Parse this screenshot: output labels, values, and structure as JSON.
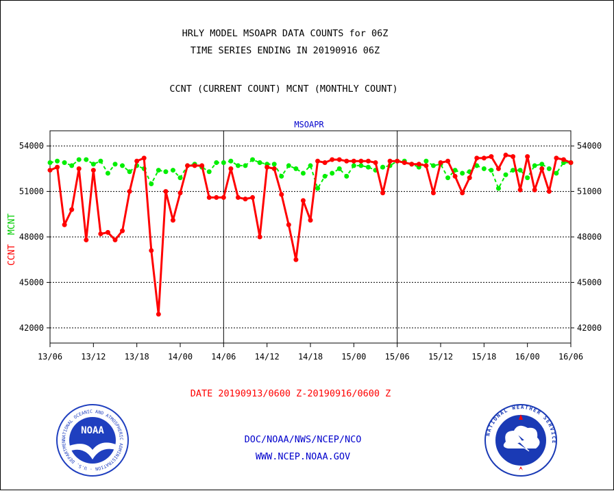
{
  "header": {
    "title_line1": "HRLY MODEL MSOAPR DATA COUNTS for 06Z",
    "title_line2": "TIME SERIES ENDING IN 20190916 06Z",
    "subtitle": "CCNT (CURRENT COUNT) MCNT (MONTHLY COUNT)"
  },
  "footer": {
    "date_range": "DATE 20190913/0600 Z-20190916/0600 Z",
    "org": "DOC/NOAA/NWS/NCEP/NCO",
    "url": "WWW.NCEP.NOAA.GOV"
  },
  "logos": {
    "noaa_text": "NOAA",
    "noaa_ring": "NATIONAL OCEANIC AND ATMOSPHERIC ADMINISTRATION · U.S. DEPARTMENT OF COMMERCE",
    "nws_ring": "NATIONAL WEATHER SERVICE"
  },
  "colors": {
    "ccnt": "#ff0000",
    "mcnt": "#00ee00",
    "label_blue": "#0000cc",
    "noaa_blue": "#1f3fbf",
    "nws_blue": "#1a3ab5"
  },
  "chart_data": {
    "type": "line",
    "title": "MSOAPR",
    "ylabel_left": "CCNT",
    "ylabel_right": "MCNT",
    "ylim": [
      41000,
      55000
    ],
    "yticks": [
      42000,
      45000,
      48000,
      51000,
      54000
    ],
    "ytick_labels": [
      "42000",
      "45000",
      "48000",
      "51000",
      "54000"
    ],
    "xlim": [
      0,
      72
    ],
    "xticks": [
      0,
      6,
      12,
      18,
      24,
      30,
      36,
      42,
      48,
      54,
      60,
      66,
      72
    ],
    "xtick_labels": [
      "13/06",
      "13/12",
      "13/18",
      "14/00",
      "14/06",
      "14/12",
      "14/18",
      "15/00",
      "15/06",
      "15/12",
      "15/18",
      "16/00",
      "16/06"
    ],
    "day_dividers": [
      24,
      48
    ],
    "grid": true,
    "series": [
      {
        "name": "CCNT",
        "x": [
          0,
          1,
          2,
          3,
          4,
          5,
          6,
          7,
          8,
          9,
          10,
          11,
          12,
          13,
          14,
          15,
          16,
          17,
          18,
          19,
          20,
          21,
          22,
          23,
          24,
          25,
          26,
          27,
          28,
          29,
          30,
          31,
          32,
          33,
          34,
          35,
          36,
          37,
          38,
          39,
          40,
          41,
          42,
          43,
          44,
          45,
          46,
          47,
          48,
          49,
          50,
          51,
          52,
          53,
          54,
          55,
          56,
          57,
          58,
          59,
          60,
          61,
          62,
          63,
          64,
          65,
          66,
          67,
          68,
          69,
          70,
          71,
          72
        ],
        "values": [
          52400,
          52600,
          48800,
          49800,
          52500,
          47800,
          52400,
          48200,
          48300,
          47800,
          48400,
          51000,
          53000,
          53200,
          47100,
          42900,
          51000,
          49100,
          50900,
          52700,
          52700,
          52700,
          50600,
          50600,
          50600,
          52500,
          50600,
          50500,
          50600,
          48000,
          52600,
          52500,
          50800,
          48800,
          46500,
          50400,
          49100,
          53000,
          52900,
          53100,
          53100,
          53000,
          53000,
          53000,
          53000,
          52900,
          50900,
          53000,
          53000,
          52900,
          52800,
          52800,
          52700,
          50900,
          52900,
          53000,
          52000,
          50900,
          51900,
          53200,
          53200,
          53300,
          52500,
          53400,
          53300,
          51100,
          53300,
          51100,
          52500,
          51000,
          53200,
          53100,
          52900
        ]
      },
      {
        "name": "MCNT",
        "x": [
          0,
          1,
          2,
          3,
          4,
          5,
          6,
          7,
          8,
          9,
          10,
          11,
          12,
          13,
          14,
          15,
          16,
          17,
          18,
          19,
          20,
          21,
          22,
          23,
          24,
          25,
          26,
          27,
          28,
          29,
          30,
          31,
          32,
          33,
          34,
          35,
          36,
          37,
          38,
          39,
          40,
          41,
          42,
          43,
          44,
          45,
          46,
          47,
          48,
          49,
          50,
          51,
          52,
          53,
          54,
          55,
          56,
          57,
          58,
          59,
          60,
          61,
          62,
          63,
          64,
          65,
          66,
          67,
          68,
          69,
          70,
          71,
          72
        ],
        "values": [
          52900,
          53000,
          52900,
          52700,
          53100,
          53100,
          52800,
          53000,
          52200,
          52800,
          52700,
          52300,
          52700,
          52500,
          51500,
          52400,
          52300,
          52400,
          51900,
          52700,
          52800,
          52600,
          52300,
          52900,
          52900,
          53000,
          52700,
          52700,
          53100,
          52900,
          52800,
          52800,
          52000,
          52700,
          52500,
          52200,
          52700,
          51200,
          52000,
          52200,
          52500,
          52000,
          52700,
          52700,
          52600,
          52400,
          52600,
          52700,
          53000,
          53000,
          52800,
          52600,
          53000,
          52700,
          52800,
          51900,
          52400,
          52200,
          52300,
          52700,
          52500,
          52400,
          51200,
          52100,
          52400,
          52400,
          51900,
          52700,
          52800,
          52500,
          52200,
          52900,
          52900
        ]
      }
    ]
  }
}
